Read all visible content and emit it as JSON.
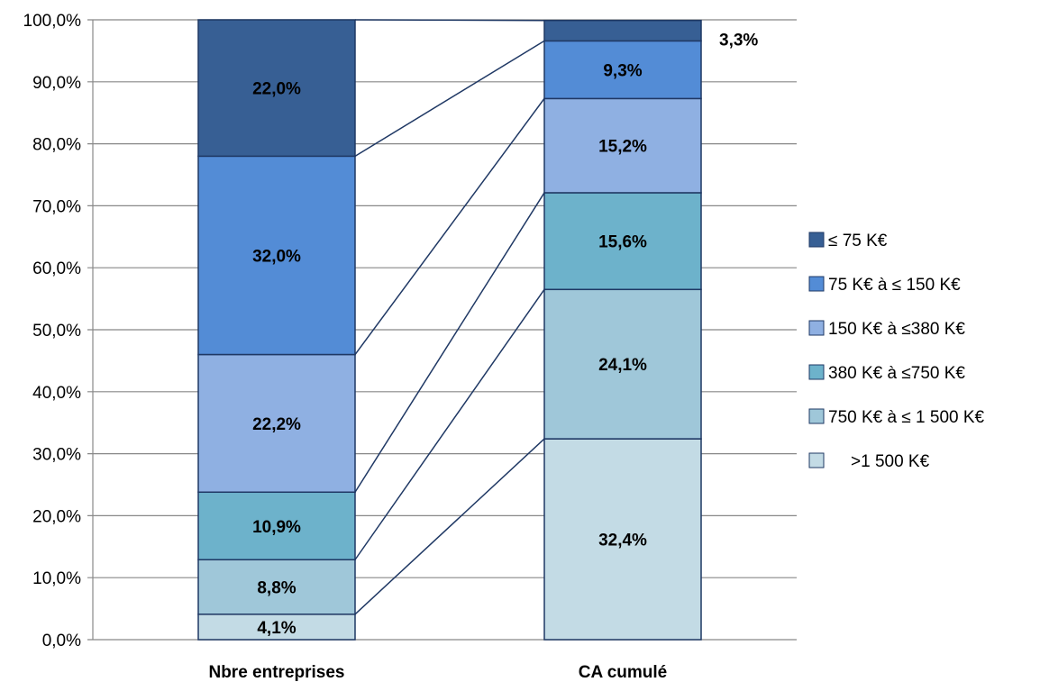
{
  "chart_data": {
    "type": "bar",
    "stacked": true,
    "categories": [
      "Nbre entreprises",
      "CA cumulé"
    ],
    "series": [
      {
        "name": ">1 500 K€",
        "values": [
          4.1,
          32.4
        ],
        "labels": [
          "4,1%",
          "32,4%"
        ],
        "color": "#c3dbe5"
      },
      {
        "name": "750 K€ à ≤ 1 500 K€",
        "values": [
          8.8,
          24.1
        ],
        "labels": [
          "8,8%",
          "24,1%"
        ],
        "color": "#9fc7d9"
      },
      {
        "name": "380 K€ à ≤750 K€",
        "values": [
          10.9,
          15.6
        ],
        "labels": [
          "10,9%",
          "15,6%"
        ],
        "color": "#6db2cb"
      },
      {
        "name": "150 K€ à ≤380 K€",
        "values": [
          22.2,
          15.2
        ],
        "labels": [
          "22,2%",
          "15,2%"
        ],
        "color": "#8fb0e2"
      },
      {
        "name": "75 K€ à ≤ 150 K€",
        "values": [
          32.0,
          9.3
        ],
        "labels": [
          "32,0%",
          "9,3%"
        ],
        "color": "#538cd6"
      },
      {
        "name": "≤ 75 K€",
        "values": [
          22.0,
          3.3
        ],
        "labels": [
          "22,0%",
          "3,3%"
        ],
        "color": "#375f94"
      }
    ],
    "yticks": [
      "0,0%",
      "10,0%",
      "20,0%",
      "30,0%",
      "40,0%",
      "50,0%",
      "60,0%",
      "70,0%",
      "80,0%",
      "90,0%",
      "100,0%"
    ],
    "ylim": [
      0,
      100
    ],
    "grid": true,
    "legend_position": "right",
    "series_lines": true,
    "gridline_color": "#888888",
    "edge_color": "#1f3864"
  }
}
